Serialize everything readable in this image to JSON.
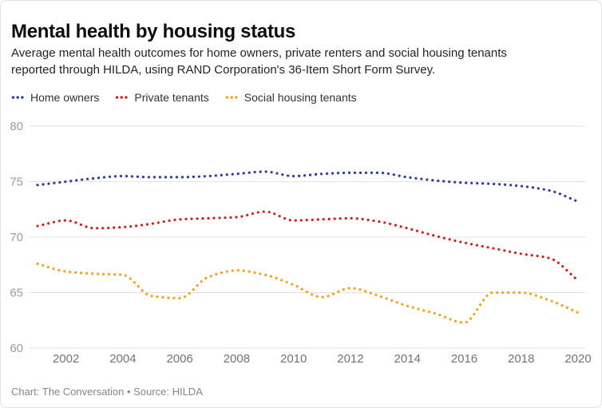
{
  "header": {
    "title": "Mental health by housing status",
    "subtitle_lines": [
      "Average mental health outcomes for home owners, private renters and social housing tenants",
      "reported through HILDA, using RAND Corporation's 36-Item Short Form Survey."
    ]
  },
  "legend": [
    {
      "label": "Home owners",
      "color": "#303d9e"
    },
    {
      "label": "Private tenants",
      "color": "#d21f1f"
    },
    {
      "label": "Social housing tenants",
      "color": "#f5a11c"
    }
  ],
  "footer": {
    "text": "Chart: The Conversation • Source: HILDA"
  },
  "chart_data": {
    "type": "line",
    "line_style": "dotted",
    "title": "Mental health by housing status",
    "xlabel": "",
    "ylabel": "",
    "grid": "horizontal",
    "legend_position": "top",
    "xlim": [
      2001,
      2020
    ],
    "ylim": [
      60,
      80
    ],
    "yticks": [
      60,
      65,
      70,
      75,
      80
    ],
    "xticks": [
      2002,
      2004,
      2006,
      2008,
      2010,
      2012,
      2014,
      2016,
      2018,
      2020
    ],
    "x": [
      2001,
      2002,
      2003,
      2004,
      2005,
      2006,
      2007,
      2008,
      2009,
      2010,
      2011,
      2012,
      2013,
      2014,
      2015,
      2016,
      2017,
      2018,
      2019,
      2020
    ],
    "series": [
      {
        "name": "Home owners",
        "color": "#303d9e",
        "values": [
          74.7,
          75.0,
          75.3,
          75.5,
          75.4,
          75.4,
          75.5,
          75.7,
          75.9,
          75.5,
          75.7,
          75.8,
          75.8,
          75.4,
          75.1,
          74.9,
          74.8,
          74.6,
          74.2,
          73.2
        ]
      },
      {
        "name": "Private tenants",
        "color": "#d21f1f",
        "values": [
          71.0,
          71.5,
          70.8,
          70.9,
          71.2,
          71.6,
          71.7,
          71.8,
          72.3,
          71.5,
          71.6,
          71.7,
          71.4,
          70.8,
          70.1,
          69.5,
          69.0,
          68.5,
          68.1,
          66.1
        ]
      },
      {
        "name": "Social housing tenants",
        "color": "#f5a11c",
        "values": [
          67.6,
          66.9,
          66.7,
          66.6,
          64.7,
          64.5,
          66.4,
          67.0,
          66.6,
          65.7,
          64.6,
          65.4,
          64.7,
          63.8,
          63.1,
          62.3,
          65.0,
          65.0,
          64.3,
          63.2
        ]
      }
    ]
  }
}
